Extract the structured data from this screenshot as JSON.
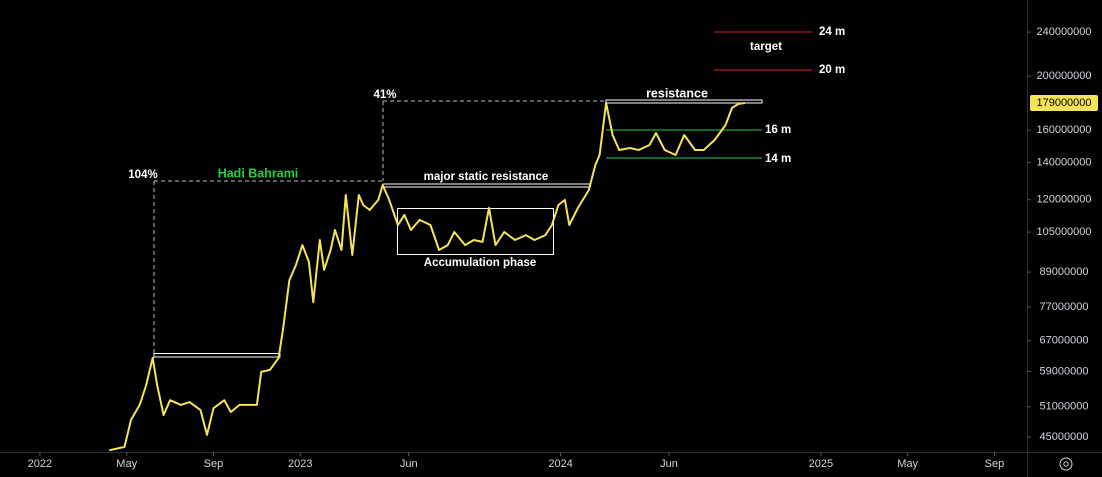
{
  "chart_data": {
    "type": "line",
    "log_scale": true,
    "grid": false,
    "xlim": [
      -1.84,
      45.5
    ],
    "ylim": [
      42300000,
      274000000
    ],
    "xticks": [
      {
        "value": 0,
        "label": "2022"
      },
      {
        "value": 4,
        "label": "May"
      },
      {
        "value": 8,
        "label": "Sep"
      },
      {
        "value": 12,
        "label": "2023"
      },
      {
        "value": 17,
        "label": "Jun"
      },
      {
        "value": 24,
        "label": "2024"
      },
      {
        "value": 29,
        "label": "Jun"
      },
      {
        "value": 36,
        "label": "2025"
      },
      {
        "value": 40,
        "label": "May"
      },
      {
        "value": 44,
        "label": "Sep"
      }
    ],
    "yticks": [
      240000000,
      200000000,
      160000000,
      140000000,
      120000000,
      105000000,
      89000000,
      77000000,
      67000000,
      59000000,
      51000000,
      45000000
    ],
    "last_value": 179000000,
    "series": [
      {
        "color": "#f7e35a",
        "x": [
          3.2,
          3.9,
          4.2,
          4.6,
          4.9,
          5.2,
          5.4,
          5.7,
          6.0,
          6.5,
          6.9,
          7.4,
          7.7,
          8.0,
          8.5,
          8.8,
          9.2,
          9.7,
          10.0,
          10.2,
          10.6,
          11.0,
          11.2,
          11.5,
          11.8,
          12.1,
          12.4,
          12.6,
          12.9,
          13.1,
          13.4,
          13.6,
          13.9,
          14.1,
          14.4,
          14.7,
          14.9,
          15.2,
          15.6,
          15.8,
          16.1,
          16.5,
          16.8,
          17.1,
          17.5,
          18.0,
          18.4,
          18.8,
          19.1,
          19.6,
          20.0,
          20.4,
          20.7,
          21.0,
          21.4,
          21.9,
          22.4,
          22.8,
          23.3,
          23.6,
          23.9,
          24.2,
          24.4,
          24.8,
          25.3,
          25.6,
          25.8,
          26.1,
          26.4,
          26.7,
          27.2,
          27.6,
          28.1,
          28.4,
          28.8,
          29.3,
          29.7,
          30.2,
          30.6,
          31.1,
          31.6,
          31.9,
          32.2,
          32.5
        ],
        "values": [
          42600000,
          43200000,
          48300000,
          51400000,
          55800000,
          62400000,
          55800000,
          49300000,
          52400000,
          51400000,
          52000000,
          50300000,
          45400000,
          50700000,
          52400000,
          49900000,
          51400000,
          51400000,
          51400000,
          58900000,
          59400000,
          62400000,
          70000000,
          86100000,
          91600000,
          99500000,
          92800000,
          78600000,
          101600000,
          89800000,
          97500000,
          105900000,
          97500000,
          122400000,
          95500000,
          122400000,
          117400000,
          115000000,
          119900000,
          127500000,
          119900000,
          108100000,
          112700000,
          105900000,
          110400000,
          108100000,
          97500000,
          99500000,
          105000000,
          99500000,
          101600000,
          100800000,
          116000000,
          99500000,
          105000000,
          101600000,
          103700000,
          101600000,
          103700000,
          108100000,
          117400000,
          119900000,
          108100000,
          116000000,
          124900000,
          138500000,
          144400000,
          179000000,
          156800000,
          147400000,
          148600000,
          147400000,
          150500000,
          158100000,
          147400000,
          144400000,
          156800000,
          147400000,
          147400000,
          153600000,
          163400000,
          175400000,
          178300000,
          179000000
        ]
      }
    ],
    "annotations": {
      "pct_1": "104%",
      "author": "Hadi Bahrami",
      "pct_2": "41%",
      "major": "major static resistance",
      "accumulation": "Accumulation phase",
      "resistance": "resistance",
      "target": "target",
      "level_24": "24 m",
      "level_20": "20 m",
      "level_16": "16 m",
      "level_14": "14 m"
    }
  }
}
